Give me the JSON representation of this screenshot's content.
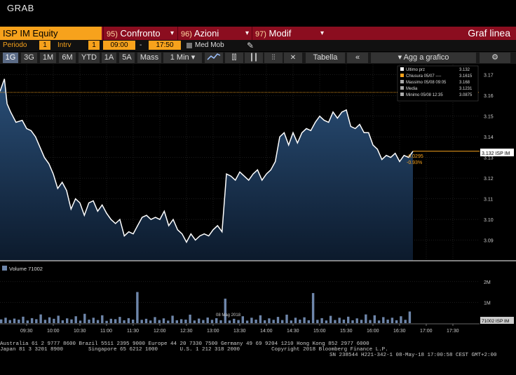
{
  "window_title": "GRAB",
  "toolbar": {
    "ticker": "ISP IM Equity",
    "btn1_num": "95)",
    "btn1_label": "Confronto",
    "btn2_num": "96)",
    "btn2_label": "Azioni",
    "btn3_num": "97)",
    "btn3_label": "Modif",
    "graph_type": "Graf linea"
  },
  "settings": {
    "period_label": "Periodo",
    "period_value": "1",
    "interval_label": "Intrv",
    "interval_value": "1",
    "start_time": "09:00",
    "dash": "-",
    "end_time": "17:50",
    "moving_avg_label": "Med Mob"
  },
  "range_bar": {
    "ranges": [
      "1G",
      "3G",
      "1M",
      "6M",
      "YTD",
      "1A",
      "5A",
      "Mass"
    ],
    "active": "1G",
    "interval_select": "1 Min",
    "table_label": "Tabella",
    "collapse_label": "«",
    "add_label": "Agg a grafico",
    "settings_label": "⚙"
  },
  "colors": {
    "price_line": "#ffffff",
    "area_top": "#2a4f78",
    "area_bottom": "#0c1a2c",
    "ref_line": "#f7a21c",
    "volume_bar": "#6e86aa"
  },
  "legend": {
    "items": [
      {
        "label": "Ultimo prz",
        "value": "3.132",
        "color": "#ffffff"
      },
      {
        "label": "Chiusura 05/07 ----",
        "value": "3.1615",
        "color": "#f7a21c"
      },
      {
        "label": "Massimo 05/08 09:05",
        "value": "3.168",
        "color": "#aaaaaa"
      },
      {
        "label": "Media",
        "value": "3.1231",
        "color": "#aaaaaa"
      },
      {
        "label": "Minimo 05/08 12:35",
        "value": "3.0875",
        "color": "#aaaaaa"
      }
    ]
  },
  "last_price_tag": "3.132 ISP IM",
  "change_abs": "-0.0295",
  "change_pct": "-0.93%",
  "volume_legend": "Volume 71002",
  "volume_tag": "71002 ISP IM",
  "date_label": "08 Mag 2018",
  "chart_data": {
    "type": "line",
    "price_axis": {
      "min": 3.08,
      "max": 3.175,
      "ticks": [
        "3.09",
        "3.10",
        "3.11",
        "3.12",
        "3.13",
        "3.14",
        "3.15",
        "3.16",
        "3.17"
      ]
    },
    "previous_close": 3.1615,
    "x_ticks": [
      "09:30",
      "10:00",
      "10:30",
      "11:00",
      "11:30",
      "12:00",
      "12:30",
      "13:00",
      "13:30",
      "14:00",
      "14:30",
      "15:00",
      "15:30",
      "16:00",
      "16:30",
      "17:00",
      "17:30"
    ],
    "x_tick_minutes": [
      30,
      60,
      90,
      120,
      150,
      180,
      210,
      240,
      270,
      300,
      330,
      360,
      390,
      420,
      450,
      480,
      510
    ],
    "x_range_minutes": [
      0,
      540
    ],
    "series": [
      {
        "minutes": [
          0,
          5,
          8,
          12,
          18,
          25,
          30,
          35,
          40,
          45,
          50,
          55,
          60,
          65,
          70,
          75,
          80,
          85,
          90,
          95,
          100,
          105,
          110,
          115,
          120,
          125,
          130,
          135,
          140,
          145,
          150,
          155,
          160,
          165,
          170,
          175,
          180,
          185,
          190,
          195,
          200,
          205,
          210,
          215,
          220,
          225,
          230,
          235,
          240,
          245,
          250,
          255,
          260,
          265,
          270,
          275,
          280,
          285,
          290,
          295,
          300,
          305,
          310,
          315,
          320,
          325,
          330,
          335,
          340,
          345,
          350,
          355,
          360,
          365,
          370,
          375,
          380,
          385,
          390,
          395,
          400,
          405,
          410,
          415,
          420,
          425,
          430,
          435,
          440,
          445,
          450,
          455,
          460,
          465
        ],
        "price": [
          3.162,
          3.168,
          3.156,
          3.152,
          3.147,
          3.148,
          3.144,
          3.143,
          3.14,
          3.135,
          3.13,
          3.127,
          3.122,
          3.115,
          3.118,
          3.114,
          3.105,
          3.11,
          3.108,
          3.102,
          3.108,
          3.109,
          3.104,
          3.107,
          3.103,
          3.1,
          3.098,
          3.1,
          3.092,
          3.094,
          3.093,
          3.097,
          3.101,
          3.102,
          3.1,
          3.101,
          3.1,
          3.104,
          3.097,
          3.1,
          3.095,
          3.093,
          3.089,
          3.093,
          3.09,
          3.092,
          3.093,
          3.092,
          3.095,
          3.097,
          3.094,
          3.122,
          3.121,
          3.119,
          3.123,
          3.121,
          3.119,
          3.122,
          3.124,
          3.119,
          3.122,
          3.124,
          3.128,
          3.14,
          3.142,
          3.136,
          3.142,
          3.137,
          3.142,
          3.144,
          3.143,
          3.147,
          3.15,
          3.148,
          3.147,
          3.152,
          3.149,
          3.152,
          3.153,
          3.145,
          3.144,
          3.146,
          3.142,
          3.142,
          3.136,
          3.134,
          3.129,
          3.131,
          3.13,
          3.132,
          3.128,
          3.131,
          3.13,
          3.133
        ]
      }
    ],
    "volume_axis": {
      "max": 2400000,
      "ticks": [
        "1M",
        "2M"
      ],
      "tick_values": [
        1000000,
        2000000
      ]
    },
    "volume": [
      180,
      260,
      150,
      220,
      170,
      310,
      130,
      240,
      190,
      420,
      160,
      280,
      210,
      360,
      140,
      230,
      180,
      330,
      120,
      450,
      170,
      260,
      150,
      380,
      110,
      210,
      190,
      300,
      140,
      240,
      170,
      1500,
      160,
      210,
      130,
      290,
      150,
      230,
      120,
      360,
      140,
      190,
      170,
      410,
      130,
      220,
      150,
      270,
      160,
      240,
      140,
      1180,
      130,
      210,
      150,
      330,
      120,
      260,
      170,
      380,
      140,
      230,
      160,
      300,
      150,
      410,
      130,
      260,
      170,
      280,
      140,
      1450,
      160,
      240,
      130,
      350,
      150,
      260,
      170,
      310,
      140,
      230,
      160,
      420,
      150,
      380,
      130,
      290,
      170,
      260,
      140,
      330,
      160,
      560
    ]
  },
  "footer": {
    "line1": "Australia 61 2 9777 8600 Brazil 5511 2395 9000 Europe 44 20 7330 7500 Germany 49 69 9204 1210 Hong Kong 852 2977 6000",
    "line2": "Japan 81 3 3201 8900        Singapore 65 6212 1000       U.S. 1 212 318 2000          Copyright 2018 Bloomberg Finance L.P.",
    "line3": "SN 238544 H221-342-1 08-May-18 17:00:58 CEST GMT+2:00"
  }
}
